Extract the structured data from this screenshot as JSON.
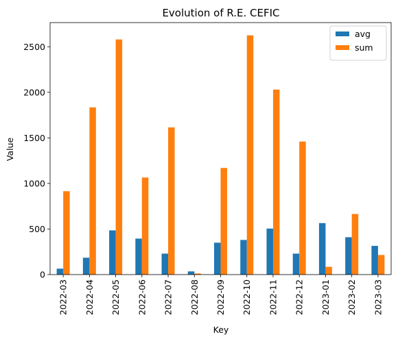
{
  "chart_data": {
    "type": "bar",
    "title": "Evolution of R.E. CEFIC",
    "xlabel": "Key",
    "ylabel": "Value",
    "categories": [
      "2022-03",
      "2022-04",
      "2022-05",
      "2022-06",
      "2022-07",
      "2022-08",
      "2022-09",
      "2022-10",
      "2022-11",
      "2022-12",
      "2023-01",
      "2023-02",
      "2023-03"
    ],
    "series": [
      {
        "name": "avg",
        "color": "#1f77b4",
        "values": [
          65,
          185,
          485,
          395,
          230,
          35,
          350,
          380,
          505,
          230,
          565,
          410,
          315
        ]
      },
      {
        "name": "sum",
        "color": "#ff7f0e",
        "values": [
          915,
          1835,
          2580,
          1065,
          1615,
          12,
          1170,
          2625,
          2030,
          1460,
          85,
          665,
          215
        ]
      }
    ],
    "ylim": [
      0,
      2765
    ],
    "yticks": [
      0,
      500,
      1000,
      1500,
      2000,
      2500
    ],
    "legend": "top-right",
    "grid": false
  }
}
